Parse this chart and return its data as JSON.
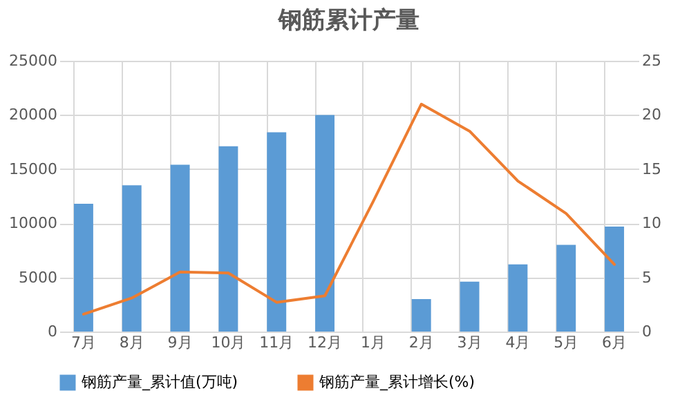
{
  "chart_data": {
    "type": "bar",
    "title": "钢筋累计产量",
    "categories": [
      "7月",
      "8月",
      "9月",
      "10月",
      "11月",
      "12月",
      "1月",
      "2月",
      "3月",
      "4月",
      "5月",
      "6月"
    ],
    "series": [
      {
        "name": "钢筋产量_累计值(万吨)",
        "color": "#5b9bd5",
        "values": [
          11800,
          13500,
          15400,
          17100,
          18400,
          20000,
          null,
          3000,
          4600,
          6200,
          8000,
          9700
        ]
      },
      {
        "name": "钢筋产量_累计增长(%)",
        "type": "line",
        "axis": "y2",
        "color": "#ed7d31",
        "values": [
          1.6,
          3.1,
          5.5,
          5.4,
          2.7,
          3.3,
          12,
          21,
          18.5,
          13.9,
          10.9,
          6.2
        ]
      }
    ],
    "ylim": [
      0,
      25000
    ],
    "yticks": [
      0,
      5000,
      10000,
      15000,
      20000,
      25000
    ],
    "y2lim": [
      0,
      25
    ],
    "y2ticks": [
      0,
      5,
      10,
      15,
      20,
      25
    ],
    "grid": true,
    "legend": "bottom",
    "marker": "none",
    "line_style": "solid"
  }
}
